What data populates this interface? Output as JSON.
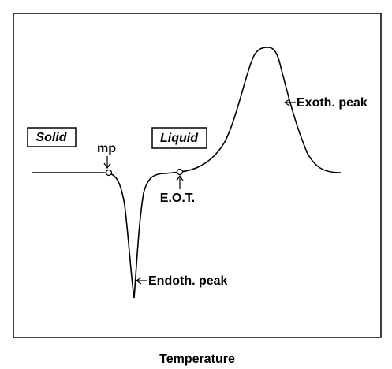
{
  "labels": {
    "solid": "Solid",
    "liquid": "Liquid",
    "mp": "mp",
    "eot": "E.O.T.",
    "exo": "Exoth. peak",
    "endo": "Endoth. peak"
  },
  "x_axis_label": "Temperature"
}
